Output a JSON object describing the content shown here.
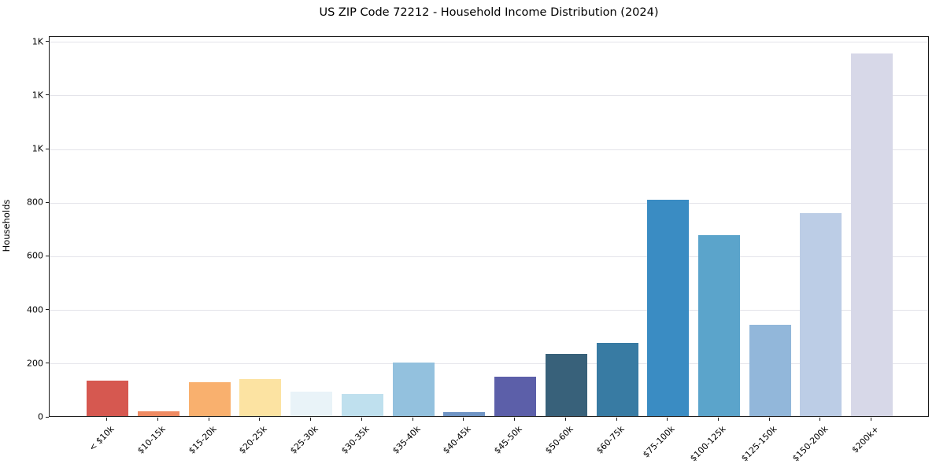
{
  "chart_data": {
    "type": "bar",
    "title": "US ZIP Code 72212 - Household Income Distribution (2024)",
    "xlabel": "",
    "ylabel": "Households",
    "categories": [
      "< $10k",
      "$10-15k",
      "$15-20k",
      "$20-25k",
      "$25-30k",
      "$30-35k",
      "$35-40k",
      "$40-45k",
      "$45-50k",
      "$50-60k",
      "$60-75k",
      "$75-100k",
      "$100-125k",
      "$125-150k",
      "$150-200k",
      "$200k+"
    ],
    "values": [
      132,
      18,
      126,
      137,
      91,
      83,
      200,
      14,
      146,
      231,
      272,
      806,
      676,
      341,
      756,
      1352
    ],
    "bar_colors": [
      "#d65850",
      "#ef8a62",
      "#f9b06e",
      "#fce3a2",
      "#e9f3f8",
      "#bfe0ee",
      "#93c1de",
      "#6f94c4",
      "#5c5fa9",
      "#38617a",
      "#387ba3",
      "#3a8cc3",
      "#5ba4cb",
      "#92b7da",
      "#bccde6",
      "#d7d8e8"
    ],
    "ylim": [
      0,
      1420
    ],
    "yticks": [
      {
        "value": 0,
        "label": "0"
      },
      {
        "value": 200,
        "label": "200"
      },
      {
        "value": 400,
        "label": "400"
      },
      {
        "value": 600,
        "label": "600"
      },
      {
        "value": 800,
        "label": "800"
      },
      {
        "value": 1000,
        "label": "1K"
      },
      {
        "value": 1200,
        "label": "1K"
      },
      {
        "value": 1400,
        "label": "1K"
      }
    ],
    "grid": "horizontal",
    "legend": "none",
    "gridline_color": "#e4e4ea",
    "spine_color": "#1a1a1a"
  }
}
